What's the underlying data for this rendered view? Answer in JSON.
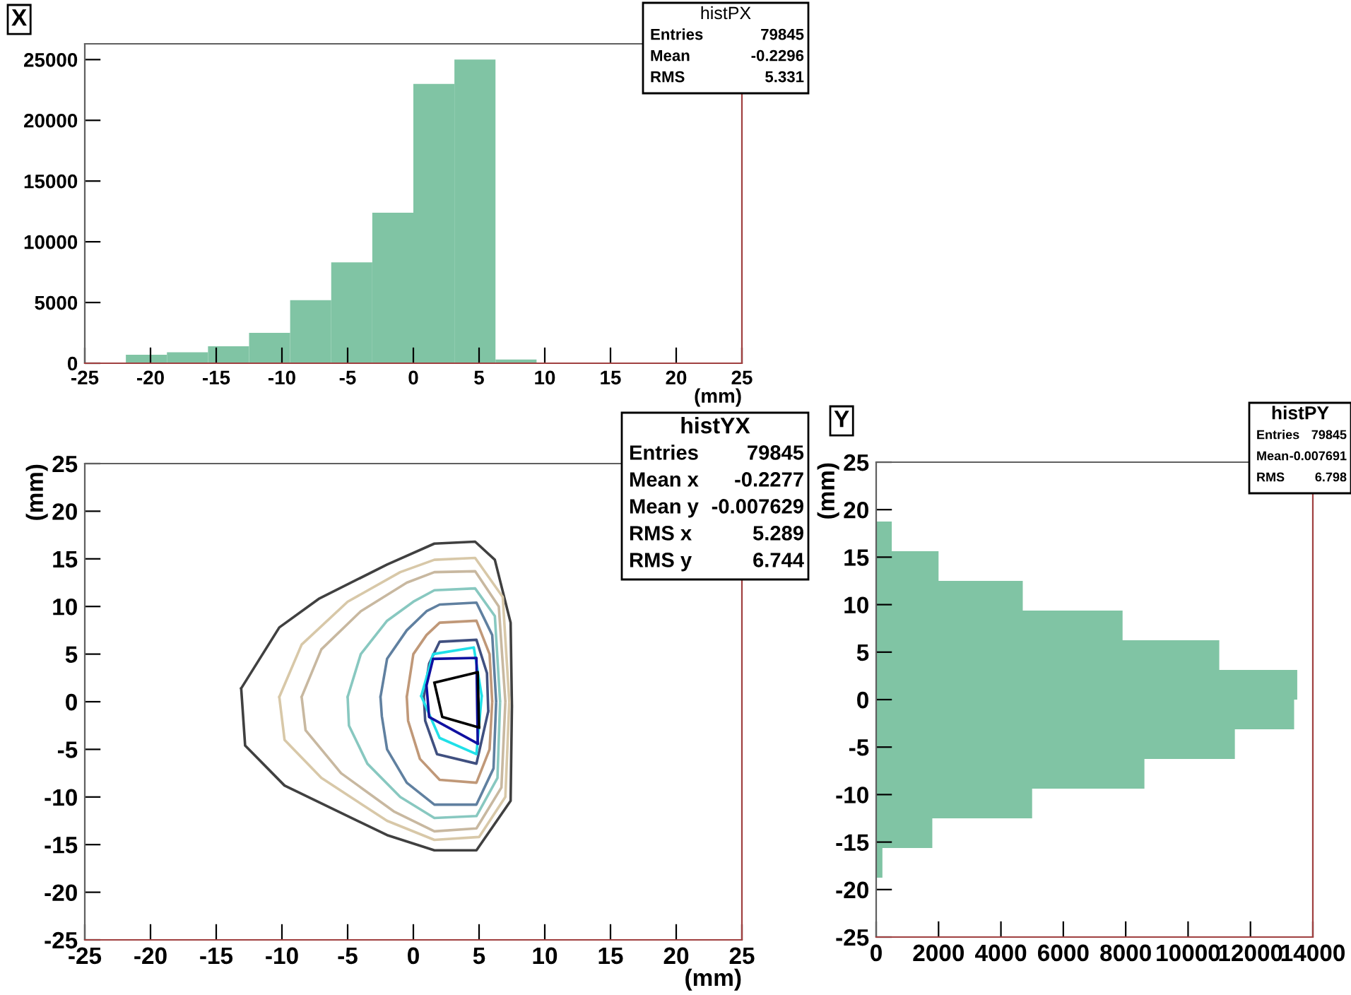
{
  "chart_data": [
    {
      "type": "histogram",
      "title": "X",
      "xlabel": "(mm)",
      "annotations": [
        "histPX",
        "Entries",
        "79845",
        "Mean",
        "-0.2296",
        "RMS",
        "5.331"
      ],
      "bins": [
        -25,
        -21.875,
        -18.75,
        -15.625,
        -12.5,
        -9.375,
        -6.25,
        -3.125,
        0,
        3.125,
        6.25,
        9.375,
        12.5,
        15.625,
        18.75,
        21.875,
        25
      ],
      "values": [
        0,
        700,
        900,
        1400,
        2500,
        5200,
        8300,
        12400,
        23000,
        25000,
        300,
        0,
        0,
        0,
        0,
        0
      ],
      "color": "#80c4a4",
      "xlim": [
        -25,
        25
      ],
      "xticks": [
        -25,
        -20,
        -15,
        -10,
        -5,
        0,
        5,
        10,
        15,
        20,
        25
      ],
      "ylim": [
        0,
        26300
      ],
      "yticks": [
        0,
        5000,
        10000,
        15000,
        20000,
        25000
      ],
      "grid": false
    },
    {
      "type": "line",
      "xlabel": "(mm)",
      "ylabel": "(mm)",
      "annotations": [
        "histYX",
        "Entries",
        "79845",
        "Mean x",
        "-0.2277",
        "Mean y",
        "-0.007629",
        "RMS x",
        "5.289",
        "RMS y",
        "6.744"
      ],
      "xlim": [
        -25,
        25
      ],
      "xticks": [
        -25,
        -20,
        -15,
        -10,
        -5,
        0,
        5,
        10,
        15,
        20,
        25
      ],
      "ylim": [
        -25,
        25
      ],
      "yticks": [
        -25,
        -20,
        -15,
        -10,
        -5,
        0,
        5,
        10,
        15,
        20,
        25
      ],
      "grid": false,
      "marker": "none",
      "series": [
        {
          "color": "#404040",
          "x": [
            -13.1,
            -10.2,
            -7.2,
            -2.0,
            1.6,
            4.7,
            6.2,
            7.4,
            7.5,
            null,
            -13.1,
            -12.8,
            -9.8,
            -2.0,
            1.6,
            4.8,
            7.4,
            7.5
          ],
          "values": [
            1.4,
            7.8,
            10.8,
            14.4,
            16.6,
            16.8,
            14.9,
            8.3,
            -0.5,
            null,
            1.4,
            -4.6,
            -8.8,
            -14.0,
            -15.6,
            -15.6,
            -10.4,
            -0.5
          ]
        },
        {
          "color": "#d8c8a8",
          "x": [
            -10.2,
            -8.5,
            -5,
            -1,
            1.6,
            4.7,
            6.8,
            7.3,
            null,
            -10.2,
            -9.8,
            -7,
            -2,
            1.6,
            5.0,
            7.0,
            7.3
          ],
          "values": [
            0.5,
            6,
            10.5,
            13.6,
            14.9,
            15.1,
            11,
            0,
            null,
            0.5,
            -4,
            -8,
            -12.5,
            -14.5,
            -14.2,
            -10,
            0
          ]
        },
        {
          "color": "#c8b8a0",
          "x": [
            -8.5,
            -7,
            -4,
            -0.5,
            1.6,
            4.7,
            6.5,
            7.0,
            null,
            -8.5,
            -8.2,
            -5.5,
            -1.5,
            1.6,
            4.8,
            6.7,
            7.0
          ],
          "values": [
            0.5,
            5.5,
            9.5,
            12.5,
            13.6,
            13.7,
            10,
            0,
            null,
            0.5,
            -3,
            -7.5,
            -11.5,
            -13.6,
            -13.3,
            -9,
            0
          ]
        },
        {
          "color": "#88c8c0",
          "x": [
            -5.0,
            -4,
            -2,
            0,
            1.6,
            4.7,
            6.2,
            6.6,
            null,
            -5.0,
            -4.9,
            -3.5,
            -1,
            1.6,
            4.8,
            6.4,
            6.6
          ],
          "values": [
            0.5,
            5,
            8.5,
            10.5,
            11.7,
            11.9,
            9,
            0,
            null,
            0.5,
            -2.5,
            -6.5,
            -10,
            -12.2,
            -12,
            -8,
            0
          ]
        },
        {
          "color": "#6080a0",
          "x": [
            -2.5,
            -2,
            -0.5,
            1,
            2,
            4.8,
            6.0,
            6.3,
            null,
            -2.5,
            -2.4,
            -2,
            -0.5,
            1.6,
            4.8,
            6.1,
            6.3
          ],
          "values": [
            0.5,
            4.5,
            7.5,
            9.5,
            10.2,
            10.4,
            7,
            0,
            null,
            0.5,
            -1.5,
            -5,
            -8.5,
            -10.8,
            -10.8,
            -7,
            0
          ]
        },
        {
          "color": "#c09878",
          "x": [
            -0.5,
            0,
            1.0,
            2,
            4.8,
            5.8,
            6,
            null,
            -0.5,
            -0.4,
            0.5,
            2,
            4.8,
            5.8,
            6
          ],
          "values": [
            0.5,
            5,
            7.0,
            8.3,
            8.5,
            5,
            0,
            null,
            0.5,
            -2,
            -6,
            -8.2,
            -8.5,
            -5,
            0
          ]
        },
        {
          "color": "#405080",
          "x": [
            0.8,
            1.2,
            2,
            4.8,
            5.6,
            5.7,
            null,
            0.8,
            0.9,
            1.8,
            4.8,
            5.7
          ],
          "values": [
            0.5,
            4.0,
            6.3,
            6.5,
            3,
            -1,
            null,
            0.5,
            -2,
            -5.5,
            -6.5,
            -1
          ]
        },
        {
          "color": "#20e0e8",
          "x": [
            0.6,
            1.5,
            4.6,
            5.2,
            null,
            0.6,
            2.0,
            4.8,
            5.2
          ],
          "values": [
            0.6,
            5.0,
            5.7,
            0.6,
            null,
            0.6,
            -3.8,
            -5.5,
            0.6
          ]
        },
        {
          "color": "#1010a0",
          "x": [
            1.0,
            1.5,
            4.8,
            4.9,
            null,
            1.0,
            1.2,
            4.9
          ],
          "values": [
            1.7,
            4.5,
            4.6,
            -4.4,
            null,
            1.7,
            -1.6,
            -4.4
          ]
        },
        {
          "color": "#000000",
          "x": [
            1.6,
            4.9,
            5.0,
            null,
            1.6,
            2.2,
            5.0
          ],
          "values": [
            2.0,
            3.1,
            -2.7,
            null,
            2.0,
            -1.6,
            -2.7
          ]
        }
      ]
    },
    {
      "type": "histogram",
      "orientation": "horizontal",
      "title": "Y",
      "ylabel": "(mm)",
      "annotations": [
        "histPY",
        "Entries",
        "79845",
        "Mean",
        "-0.007691",
        "RMS",
        "6.798"
      ],
      "bins": [
        -25,
        -21.875,
        -18.75,
        -15.625,
        -12.5,
        -9.375,
        -6.25,
        -3.125,
        0,
        3.125,
        6.25,
        9.375,
        12.5,
        15.625,
        18.75,
        21.875,
        25
      ],
      "values": [
        0,
        0,
        200,
        1800,
        5000,
        8600,
        11500,
        13400,
        13500,
        11000,
        7900,
        4700,
        2000,
        500,
        0,
        0
      ],
      "color": "#80c4a4",
      "ylim": [
        -25,
        25
      ],
      "yticks": [
        -25,
        -20,
        -15,
        -10,
        -5,
        0,
        5,
        10,
        15,
        20,
        25
      ],
      "xlim": [
        0,
        14000
      ],
      "xticks": [
        0,
        2000,
        4000,
        6000,
        8000,
        10000,
        12000,
        14000
      ],
      "grid": false
    }
  ]
}
